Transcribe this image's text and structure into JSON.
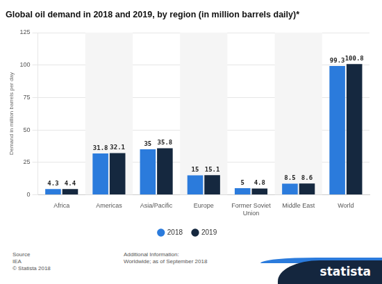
{
  "chart_data": {
    "type": "bar",
    "title": "Global oil demand in 2018 and 2019, by region (in million barrels daily)*",
    "y_label": "Demand in million barrels per day",
    "categories": [
      "Africa",
      "Americas",
      "Asia/Pacific",
      "Europe",
      "Former Soviet Union",
      "Middle East",
      "World"
    ],
    "series": [
      {
        "name": "2018",
        "color": "#2b7bdc",
        "values": [
          4.3,
          31.8,
          35,
          15,
          5,
          8.5,
          99.3
        ]
      },
      {
        "name": "2019",
        "color": "#15283f",
        "values": [
          4.4,
          32.1,
          35.8,
          15.1,
          4.8,
          8.6,
          100.8
        ]
      }
    ],
    "ylim": [
      0,
      125
    ],
    "yticks": [
      0,
      25,
      50,
      75,
      100,
      125
    ],
    "grid": true,
    "legend": "bottom",
    "data_labels": true,
    "annotations": {
      "source_label": "Source",
      "source": "IEA",
      "copyright": "© Statista 2018",
      "info_label": "Additional Information:",
      "info": "Worldwide; as of September 2018",
      "logo": "statista"
    }
  }
}
